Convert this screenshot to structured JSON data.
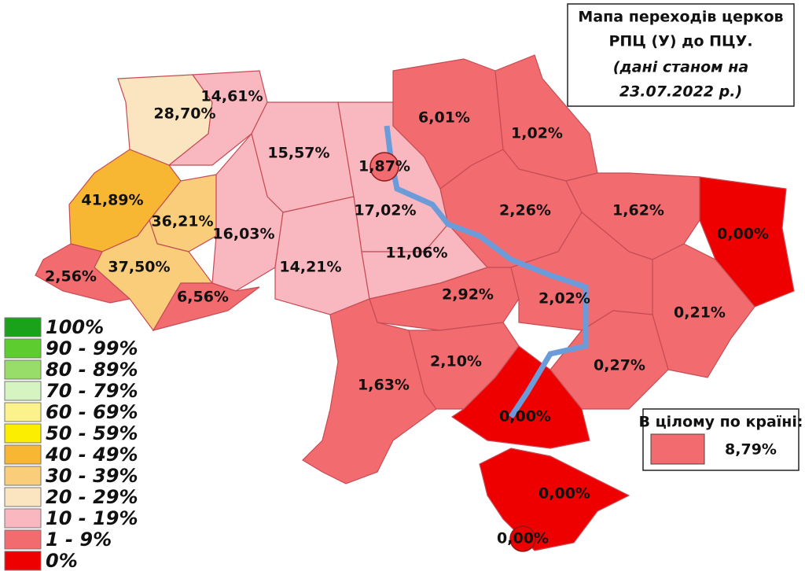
{
  "title": {
    "lines": [
      "Мапа переходів церков",
      "РПЦ (У) до ПЦУ.",
      "(дані станом на",
      "23.07.2022 р.)"
    ]
  },
  "legend": [
    {
      "label": "100%",
      "color": "#1aa31a"
    },
    {
      "label": "90 - 99%",
      "color": "#5ccc2f"
    },
    {
      "label": "80 - 89%",
      "color": "#98dd6a"
    },
    {
      "label": "70 - 79%",
      "color": "#d6f4c2"
    },
    {
      "label": "60 - 69%",
      "color": "#fbf28c"
    },
    {
      "label": "50 - 59%",
      "color": "#fbee00"
    },
    {
      "label": "40 - 49%",
      "color": "#f7b733"
    },
    {
      "label": "30 - 39%",
      "color": "#f9cd7a"
    },
    {
      "label": "20 - 29%",
      "color": "#fbe5c0"
    },
    {
      "label": "10 - 19%",
      "color": "#f9b8c0"
    },
    {
      "label": "1 - 9%",
      "color": "#f26b6f"
    },
    {
      "label": "0%",
      "color": "#ee0000"
    }
  ],
  "regions": [
    {
      "label": "28,70%",
      "color": "#fbe5c0"
    },
    {
      "label": "14,61%",
      "color": "#f9b8c0"
    },
    {
      "label": "15,57%",
      "color": "#f9b8c0"
    },
    {
      "label": "17,02%",
      "color": "#f9b8c0"
    },
    {
      "label": "41,89%",
      "color": "#f7b733"
    },
    {
      "label": "36,21%",
      "color": "#f9cd7a"
    },
    {
      "label": "16,03%",
      "color": "#f9b8c0"
    },
    {
      "label": "14,21%",
      "color": "#f9b8c0"
    },
    {
      "label": "11,06%",
      "color": "#f9b8c0"
    },
    {
      "label": "37,50%",
      "color": "#f9cd7a"
    },
    {
      "label": "2,56%",
      "color": "#f26b6f"
    },
    {
      "label": "6,56%",
      "color": "#f26b6f"
    },
    {
      "label": "6,01%",
      "color": "#f26b6f"
    },
    {
      "label": "1,02%",
      "color": "#f26b6f"
    },
    {
      "label": "2,26%",
      "color": "#f26b6f"
    },
    {
      "label": "1,62%",
      "color": "#f26b6f"
    },
    {
      "label": "0,00%",
      "color": "#ee0000"
    },
    {
      "label": "0,21%",
      "color": "#f26b6f"
    },
    {
      "label": "2,92%",
      "color": "#f26b6f"
    },
    {
      "label": "2,02%",
      "color": "#f26b6f"
    },
    {
      "label": "1,63%",
      "color": "#f26b6f"
    },
    {
      "label": "2,10%",
      "color": "#f26b6f"
    },
    {
      "label": "0,27%",
      "color": "#f26b6f"
    },
    {
      "label": "0,00%",
      "color": "#ee0000"
    },
    {
      "label": "0,00%",
      "color": "#ee0000"
    },
    {
      "label": "1,87%",
      "color": "#f26b6f"
    },
    {
      "label": "0,00%",
      "color": "#ee0000"
    }
  ],
  "total": {
    "caption": "В цілому по країні:",
    "value": "8,79%",
    "color": "#f26b6f"
  }
}
